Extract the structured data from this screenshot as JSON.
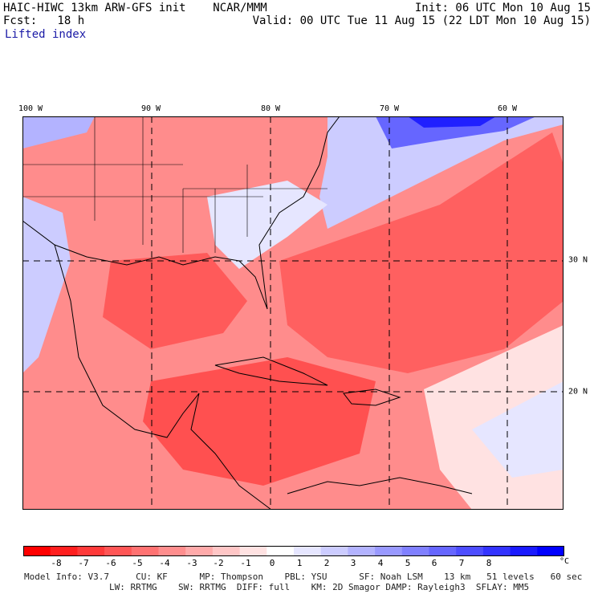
{
  "header": {
    "title": "HAIC-HIWC 13km ARW-GFS init    NCAR/MMM",
    "init": "Init: 06 UTC Mon 10 Aug 15",
    "fcst": "Fcst:   18 h",
    "valid": "Valid: 00 UTC Tue 11 Aug 15 (22 LDT Mon 10 Aug 15)",
    "field": "Lifted index"
  },
  "map": {
    "lon_labels": [
      "100 W",
      "90 W",
      "80 W",
      "70 W",
      "60 W"
    ],
    "lat_labels": [
      "30 N",
      "20 N"
    ],
    "unit": "°C",
    "field_range": [
      -8,
      8
    ]
  },
  "colorbar": {
    "colors": [
      "#ff0000",
      "#ff1f1f",
      "#ff3a3a",
      "#ff5656",
      "#ff7272",
      "#ff8e8e",
      "#ffaaaa",
      "#ffc6c6",
      "#ffe2e2",
      "#ffffff",
      "#e6e6ff",
      "#ccccff",
      "#b3b3ff",
      "#9999ff",
      "#8080ff",
      "#6666ff",
      "#4d4dff",
      "#3333ff",
      "#1a1aff",
      "#0000ff"
    ],
    "labels": [
      "-8",
      "-7",
      "-6",
      "-5",
      "-4",
      "-3",
      "-2",
      "-1",
      "0",
      "1",
      "2",
      "3",
      "4",
      "5",
      "6",
      "7",
      "8"
    ],
    "unit": "°C"
  },
  "footer": {
    "line1": "Model Info: V3.7     CU: KF      MP: Thompson    PBL: YSU      SF: Noah LSM    13 km   51 levels   60 sec",
    "line2": "                LW: RRTMG    SW: RRTMG  DIFF: full    KM: 2D Smagor DAMP: Rayleigh3  SFLAY: MM5"
  }
}
